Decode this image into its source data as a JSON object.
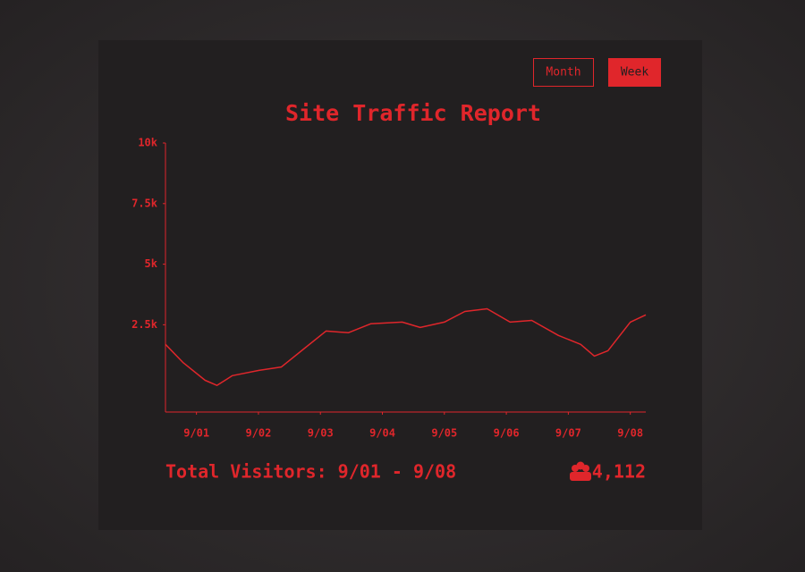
{
  "buttons": [
    "Month",
    "Week"
  ],
  "chart_data": {
    "type": "line",
    "title": "Site Traffic Report",
    "x": [
      0.5,
      0.78,
      1.14,
      1.33,
      1.58,
      2.01,
      2.37,
      2.73,
      3.09,
      3.45,
      3.81,
      4.32,
      4.61,
      5.0,
      5.33,
      5.69,
      6.06,
      6.41,
      6.84,
      7.2,
      7.42,
      7.64,
      8.0,
      8.25
    ],
    "series": [
      {
        "color": "#e0262b",
        "values": [
          1690,
          950,
          210,
          0,
          400,
          620,
          760,
          1500,
          2240,
          2170,
          2540,
          2610,
          2390,
          2610,
          3050,
          3160,
          2610,
          2680,
          2060,
          1690,
          1210,
          1430,
          2610,
          2910
        ]
      }
    ],
    "xlim": [
      0.5,
      8.25
    ],
    "xticks": [
      {
        "value": 1,
        "label": "9/01"
      },
      {
        "value": 2,
        "label": "9/02"
      },
      {
        "value": 3,
        "label": "9/03"
      },
      {
        "value": 4,
        "label": "9/04"
      },
      {
        "value": 5,
        "label": "9/05"
      },
      {
        "value": 6,
        "label": "9/06"
      },
      {
        "value": 7,
        "label": "9/07"
      },
      {
        "value": 8,
        "label": "9/08"
      }
    ],
    "ylim": [
      -1100,
      10000
    ],
    "yticks": [
      {
        "value": 2500,
        "label": "2.5k"
      },
      {
        "value": 5000,
        "label": "5k"
      },
      {
        "value": 7500,
        "label": "7.5k"
      },
      {
        "value": 10000,
        "label": "10k"
      }
    ],
    "grid": false
  },
  "footer": {
    "label": "Total Visitors: 9/01 - 9/08",
    "total": "4,112"
  }
}
